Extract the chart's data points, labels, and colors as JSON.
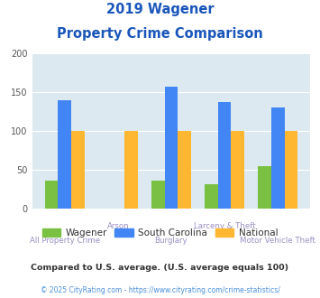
{
  "title_line1": "2019 Wagener",
  "title_line2": "Property Crime Comparison",
  "categories": [
    "All Property Crime",
    "Arson",
    "Burglary",
    "Larceny & Theft",
    "Motor Vehicle Theft"
  ],
  "wagener": [
    36,
    0,
    36,
    32,
    55
  ],
  "south_carolina": [
    140,
    0,
    157,
    137,
    131
  ],
  "national": [
    100,
    100,
    100,
    100,
    100
  ],
  "wagener_color": "#7ac143",
  "sc_color": "#4285f4",
  "national_color": "#ffb732",
  "bg_color": "#dce9f0",
  "title_color": "#1a56bb",
  "xlabel_color": "#9b8ec4",
  "footnote1": "Compared to U.S. average. (U.S. average equals 100)",
  "footnote2": "© 2025 CityRating.com - https://www.cityrating.com/crime-statistics/",
  "footnote1_color": "#333333",
  "footnote2_color": "#4a90d9",
  "legend_wagener": "Wagener",
  "legend_sc": "South Carolina",
  "legend_national": "National",
  "ylim": [
    0,
    200
  ],
  "yticks": [
    0,
    50,
    100,
    150,
    200
  ],
  "bar_width": 0.25
}
